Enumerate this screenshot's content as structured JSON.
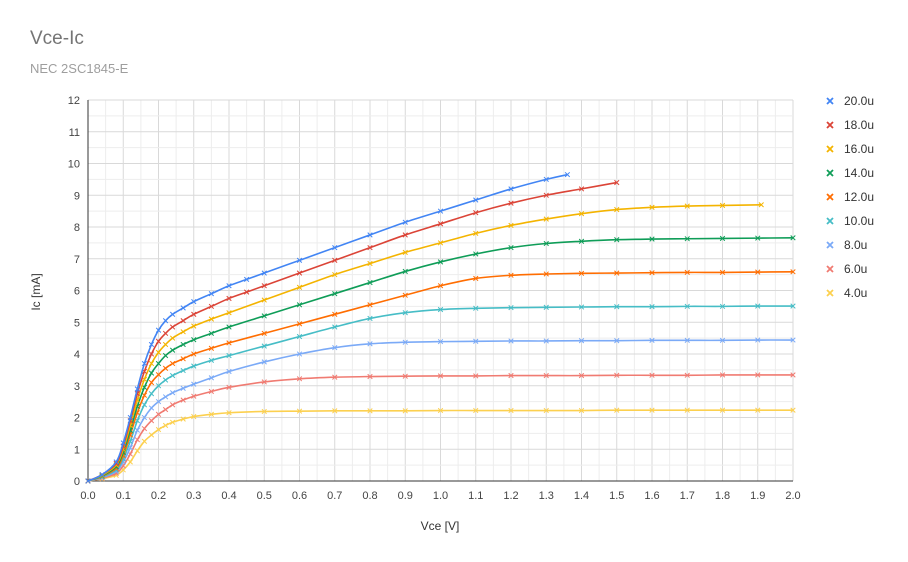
{
  "chart_data": {
    "type": "scatter",
    "title": "Vce-Ic",
    "subtitle": "NEC 2SC1845-E",
    "xlabel": "Vce [V]",
    "ylabel": "Ic [mA]",
    "xlim": [
      0,
      2
    ],
    "ylim": [
      0,
      12
    ],
    "x_major": 0.1,
    "y_major": 1,
    "minor_per_major": 2,
    "grid": true,
    "legend_position": "right",
    "markers": "x",
    "lines": "smooth",
    "series": [
      {
        "name": "20.0u",
        "color": "#4285f4",
        "x": [
          0,
          0.04,
          0.08,
          0.1,
          0.12,
          0.14,
          0.16,
          0.18,
          0.2,
          0.22,
          0.24,
          0.27,
          0.3,
          0.35,
          0.4,
          0.45,
          0.5,
          0.6,
          0.7,
          0.8,
          0.9,
          1.0,
          1.1,
          1.2,
          1.3,
          1.36
        ],
        "y": [
          0,
          0.2,
          0.6,
          1.2,
          2.0,
          2.9,
          3.7,
          4.3,
          4.75,
          5.05,
          5.25,
          5.45,
          5.65,
          5.9,
          6.15,
          6.35,
          6.55,
          6.95,
          7.35,
          7.75,
          8.15,
          8.5,
          8.85,
          9.2,
          9.5,
          9.65
        ]
      },
      {
        "name": "18.0u",
        "color": "#db4437",
        "x": [
          0,
          0.04,
          0.08,
          0.1,
          0.12,
          0.14,
          0.16,
          0.18,
          0.2,
          0.22,
          0.24,
          0.27,
          0.3,
          0.35,
          0.4,
          0.45,
          0.5,
          0.6,
          0.7,
          0.8,
          0.9,
          1.0,
          1.1,
          1.2,
          1.3,
          1.4,
          1.5
        ],
        "y": [
          0,
          0.2,
          0.55,
          1.1,
          1.9,
          2.75,
          3.45,
          4.0,
          4.4,
          4.65,
          4.85,
          5.05,
          5.25,
          5.5,
          5.75,
          5.95,
          6.15,
          6.55,
          6.95,
          7.35,
          7.75,
          8.1,
          8.45,
          8.75,
          9.0,
          9.2,
          9.4
        ]
      },
      {
        "name": "16.0u",
        "color": "#f4b400",
        "x": [
          0,
          0.04,
          0.08,
          0.1,
          0.12,
          0.14,
          0.16,
          0.18,
          0.2,
          0.22,
          0.24,
          0.27,
          0.3,
          0.35,
          0.4,
          0.5,
          0.6,
          0.7,
          0.8,
          0.9,
          1.0,
          1.1,
          1.2,
          1.3,
          1.4,
          1.5,
          1.6,
          1.7,
          1.8,
          1.91
        ],
        "y": [
          0,
          0.18,
          0.5,
          1.0,
          1.75,
          2.55,
          3.2,
          3.7,
          4.05,
          4.3,
          4.5,
          4.7,
          4.88,
          5.1,
          5.3,
          5.7,
          6.1,
          6.5,
          6.85,
          7.2,
          7.5,
          7.8,
          8.05,
          8.25,
          8.42,
          8.55,
          8.62,
          8.66,
          8.68,
          8.7
        ]
      },
      {
        "name": "14.0u",
        "color": "#0f9d58",
        "x": [
          0,
          0.04,
          0.08,
          0.1,
          0.12,
          0.14,
          0.16,
          0.18,
          0.2,
          0.22,
          0.24,
          0.27,
          0.3,
          0.35,
          0.4,
          0.5,
          0.6,
          0.7,
          0.8,
          0.9,
          1.0,
          1.1,
          1.2,
          1.3,
          1.4,
          1.5,
          1.6,
          1.7,
          1.8,
          1.9,
          2.0
        ],
        "y": [
          0,
          0.16,
          0.45,
          0.9,
          1.6,
          2.35,
          2.95,
          3.4,
          3.7,
          3.95,
          4.12,
          4.3,
          4.45,
          4.65,
          4.85,
          5.2,
          5.55,
          5.9,
          6.25,
          6.6,
          6.9,
          7.15,
          7.35,
          7.48,
          7.55,
          7.6,
          7.62,
          7.63,
          7.64,
          7.65,
          7.66
        ]
      },
      {
        "name": "12.0u",
        "color": "#ff6d01",
        "x": [
          0,
          0.04,
          0.08,
          0.1,
          0.12,
          0.14,
          0.16,
          0.18,
          0.2,
          0.22,
          0.24,
          0.27,
          0.3,
          0.35,
          0.4,
          0.5,
          0.6,
          0.7,
          0.8,
          0.9,
          1.0,
          1.1,
          1.2,
          1.3,
          1.4,
          1.5,
          1.6,
          1.7,
          1.8,
          1.9,
          2.0
        ],
        "y": [
          0,
          0.15,
          0.4,
          0.8,
          1.45,
          2.15,
          2.7,
          3.1,
          3.35,
          3.55,
          3.7,
          3.85,
          4.0,
          4.18,
          4.35,
          4.65,
          4.95,
          5.25,
          5.55,
          5.85,
          6.15,
          6.38,
          6.48,
          6.52,
          6.54,
          6.55,
          6.56,
          6.57,
          6.57,
          6.58,
          6.59
        ]
      },
      {
        "name": "10.0u",
        "color": "#46bdc6",
        "x": [
          0,
          0.04,
          0.08,
          0.1,
          0.12,
          0.14,
          0.16,
          0.18,
          0.2,
          0.22,
          0.24,
          0.27,
          0.3,
          0.35,
          0.4,
          0.5,
          0.6,
          0.7,
          0.8,
          0.9,
          1.0,
          1.1,
          1.2,
          1.3,
          1.4,
          1.5,
          1.6,
          1.7,
          1.8,
          1.9,
          2.0
        ],
        "y": [
          0,
          0.13,
          0.35,
          0.7,
          1.25,
          1.9,
          2.4,
          2.75,
          3.0,
          3.18,
          3.32,
          3.48,
          3.62,
          3.8,
          3.95,
          4.25,
          4.55,
          4.85,
          5.12,
          5.3,
          5.4,
          5.44,
          5.46,
          5.47,
          5.48,
          5.49,
          5.49,
          5.5,
          5.5,
          5.51,
          5.51
        ]
      },
      {
        "name": "8.0u",
        "color": "#7baaf7",
        "x": [
          0,
          0.04,
          0.08,
          0.1,
          0.12,
          0.14,
          0.16,
          0.18,
          0.2,
          0.22,
          0.24,
          0.27,
          0.3,
          0.35,
          0.4,
          0.5,
          0.6,
          0.7,
          0.8,
          0.9,
          1.0,
          1.1,
          1.2,
          1.3,
          1.4,
          1.5,
          1.6,
          1.7,
          1.8,
          1.9,
          2.0
        ],
        "y": [
          0,
          0.11,
          0.3,
          0.6,
          1.05,
          1.6,
          2.0,
          2.3,
          2.5,
          2.65,
          2.78,
          2.92,
          3.05,
          3.25,
          3.45,
          3.75,
          4.0,
          4.2,
          4.32,
          4.37,
          4.39,
          4.4,
          4.41,
          4.41,
          4.42,
          4.42,
          4.43,
          4.43,
          4.43,
          4.44,
          4.44
        ]
      },
      {
        "name": "6.0u",
        "color": "#f07b72",
        "x": [
          0,
          0.04,
          0.08,
          0.1,
          0.12,
          0.14,
          0.16,
          0.18,
          0.2,
          0.22,
          0.24,
          0.27,
          0.3,
          0.35,
          0.4,
          0.5,
          0.6,
          0.7,
          0.8,
          0.9,
          1.0,
          1.1,
          1.2,
          1.3,
          1.4,
          1.5,
          1.6,
          1.7,
          1.8,
          1.9,
          2.0
        ],
        "y": [
          0,
          0.09,
          0.24,
          0.48,
          0.85,
          1.3,
          1.65,
          1.9,
          2.1,
          2.25,
          2.4,
          2.55,
          2.67,
          2.82,
          2.95,
          3.12,
          3.22,
          3.27,
          3.29,
          3.3,
          3.31,
          3.31,
          3.32,
          3.32,
          3.32,
          3.33,
          3.33,
          3.33,
          3.34,
          3.34,
          3.34
        ]
      },
      {
        "name": "4.0u",
        "color": "#fcd04f",
        "x": [
          0,
          0.04,
          0.08,
          0.1,
          0.12,
          0.14,
          0.16,
          0.18,
          0.2,
          0.22,
          0.24,
          0.27,
          0.3,
          0.35,
          0.4,
          0.5,
          0.6,
          0.7,
          0.8,
          0.9,
          1.0,
          1.1,
          1.2,
          1.3,
          1.4,
          1.5,
          1.6,
          1.7,
          1.8,
          1.9,
          2.0
        ],
        "y": [
          0,
          0.07,
          0.18,
          0.35,
          0.6,
          0.95,
          1.25,
          1.45,
          1.62,
          1.75,
          1.85,
          1.95,
          2.03,
          2.1,
          2.15,
          2.19,
          2.2,
          2.21,
          2.21,
          2.21,
          2.22,
          2.22,
          2.22,
          2.22,
          2.22,
          2.23,
          2.23,
          2.23,
          2.23,
          2.23,
          2.23
        ]
      }
    ]
  }
}
